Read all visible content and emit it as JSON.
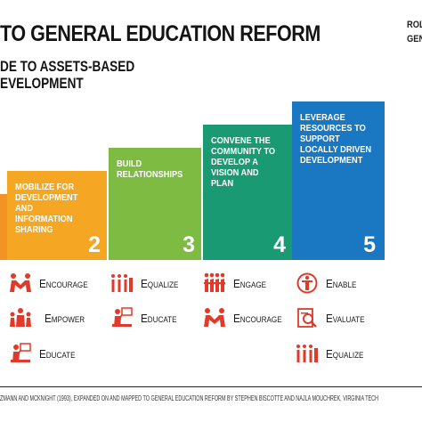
{
  "header": {
    "title": "TO GENERAL EDUCATION REFORM",
    "subtitle_line1": "DE TO ASSETS-BASED",
    "subtitle_line2": "EVELOPMENT",
    "side_line1": "ROL",
    "side_line2": "GEN"
  },
  "steps": [
    {
      "label": "",
      "number": "",
      "color": "#f29425"
    },
    {
      "label": "Mobilize for development and information sharing",
      "number": "2",
      "color": "#f5a623"
    },
    {
      "label": "Build relationships",
      "number": "3",
      "color": "#7dbb42"
    },
    {
      "label": "Convene the community to develop a vision and plan",
      "number": "4",
      "color": "#1a9a73"
    },
    {
      "label": "Leverage resources to support locally driven development",
      "number": "5",
      "color": "#1a77c2"
    }
  ],
  "actions": {
    "col1": [
      {
        "label": "Encourage",
        "icon": "encourage-icon"
      },
      {
        "label": "Empower",
        "icon": "empower-icon"
      },
      {
        "label": "Educate",
        "icon": "educate-icon"
      }
    ],
    "col2": [
      {
        "label": "Equalize",
        "icon": "equalize-icon"
      },
      {
        "label": "Educate",
        "icon": "educate-icon"
      }
    ],
    "col3": [
      {
        "label": "Engage",
        "icon": "engage-icon"
      },
      {
        "label": "Encourage",
        "icon": "encourage-icon"
      }
    ],
    "col4": [
      {
        "label": "Enable",
        "icon": "enable-icon"
      },
      {
        "label": "Evaluate",
        "icon": "evaluate-icon"
      },
      {
        "label": "Equalize",
        "icon": "equalize-icon"
      }
    ]
  },
  "icon_color": "#e23a2a",
  "footer": "ZMANN AND MCKNIGHT (1993), EXPANDED ON AND MAPPED TO GENERAL EDUCATION REFORM BY STEPHEN BISCOTTE AND NAJLA MOUCHREK, VIRGINIA TECH"
}
